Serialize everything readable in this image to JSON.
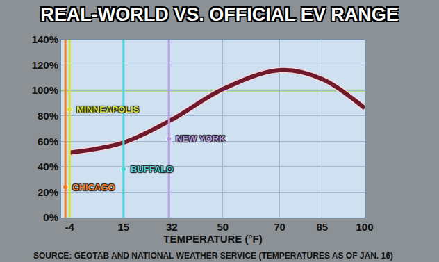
{
  "chart_data": {
    "type": "line",
    "title": "REAL-WORLD VS. OFFICIAL EV RANGE",
    "x_label": "TEMPERATURE (°F)",
    "source": "SOURCE: GEOTAB AND NATIONAL WEATHER SERVICE (TEMPERATURES AS OF JAN. 16)",
    "x": [
      -4,
      15,
      32,
      50,
      70,
      85,
      100
    ],
    "values": [
      51,
      59,
      77,
      101,
      116,
      109,
      86
    ],
    "color": "#6e1a2c",
    "xlim": [
      -7,
      100
    ],
    "xticks": [
      -4,
      15,
      32,
      50,
      70,
      85,
      100
    ],
    "ylim": [
      0,
      140
    ],
    "yticks": [
      {
        "value": 0,
        "label": "0%"
      },
      {
        "value": 20,
        "label": "20%"
      },
      {
        "value": 40,
        "label": "40%"
      },
      {
        "value": 60,
        "label": "60%"
      },
      {
        "value": 80,
        "label": "80%"
      },
      {
        "value": 100,
        "label": "100%"
      },
      {
        "value": 120,
        "label": "120%"
      },
      {
        "value": 140,
        "label": "140%"
      }
    ],
    "grid": true,
    "reference_line": {
      "value": 100,
      "color": "#a9dc6a"
    },
    "cities": [
      {
        "label": "MINNEAPOLIS",
        "x": -4,
        "y": 85,
        "color": "#d6e23c"
      },
      {
        "label": "NEW YORK",
        "x": 31,
        "y": 62,
        "color": "#b49be0"
      },
      {
        "label": "BUFFALO",
        "x": 15,
        "y": 38,
        "color": "#4fd4d8"
      },
      {
        "label": "CHICAGO",
        "x": -5.5,
        "y": 24,
        "color": "#f07f2a"
      }
    ]
  }
}
